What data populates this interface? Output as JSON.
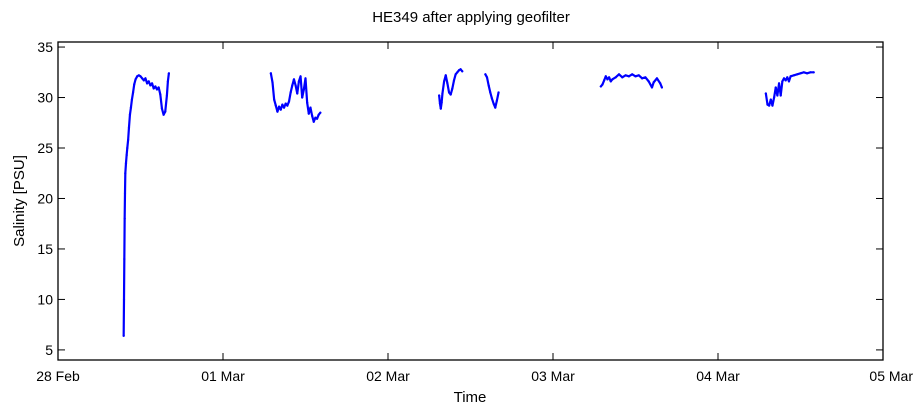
{
  "chart_data": {
    "type": "line",
    "title": "HE349 after applying geofilter",
    "xlabel": "Time",
    "ylabel": "Salinity [PSU]",
    "x_tick_labels": [
      "28 Feb",
      "01 Mar",
      "02 Mar",
      "03 Mar",
      "04 Mar",
      "05 Mar"
    ],
    "y_ticks": [
      5,
      10,
      15,
      20,
      25,
      30,
      35
    ],
    "xlim": [
      0,
      5
    ],
    "ylim": [
      4,
      35.5
    ],
    "grid": false,
    "line_color": "#0000ff",
    "series": [
      {
        "segments": [
          [
            [
              0.398,
              6.4
            ],
            [
              0.4,
              10.0
            ],
            [
              0.402,
              14.0
            ],
            [
              0.404,
              18.0
            ],
            [
              0.406,
              20.5
            ],
            [
              0.408,
              22.5
            ],
            [
              0.412,
              23.5
            ],
            [
              0.416,
              24.3
            ],
            [
              0.42,
              25.0
            ],
            [
              0.425,
              25.8
            ],
            [
              0.43,
              27.0
            ],
            [
              0.436,
              28.3
            ],
            [
              0.442,
              29.0
            ],
            [
              0.448,
              29.8
            ],
            [
              0.455,
              30.5
            ],
            [
              0.462,
              31.3
            ],
            [
              0.47,
              31.8
            ],
            [
              0.48,
              32.1
            ],
            [
              0.49,
              32.2
            ],
            [
              0.5,
              32.1
            ],
            [
              0.51,
              31.9
            ],
            [
              0.52,
              31.7
            ],
            [
              0.53,
              31.9
            ],
            [
              0.54,
              31.4
            ],
            [
              0.55,
              31.6
            ],
            [
              0.56,
              31.2
            ],
            [
              0.57,
              31.4
            ],
            [
              0.58,
              30.9
            ],
            [
              0.59,
              31.1
            ],
            [
              0.6,
              30.8
            ],
            [
              0.61,
              31.0
            ],
            [
              0.62,
              30.3
            ],
            [
              0.63,
              28.9
            ],
            [
              0.64,
              28.3
            ],
            [
              0.65,
              28.6
            ],
            [
              0.66,
              30.2
            ],
            [
              0.666,
              31.6
            ],
            [
              0.672,
              32.4
            ]
          ],
          [
            [
              1.29,
              32.4
            ],
            [
              1.3,
              31.5
            ],
            [
              1.31,
              29.8
            ],
            [
              1.32,
              29.2
            ],
            [
              1.33,
              28.6
            ],
            [
              1.34,
              29.1
            ],
            [
              1.35,
              28.8
            ],
            [
              1.36,
              29.3
            ],
            [
              1.37,
              29.0
            ],
            [
              1.38,
              29.4
            ],
            [
              1.39,
              29.2
            ],
            [
              1.4,
              29.6
            ],
            [
              1.41,
              30.5
            ],
            [
              1.42,
              31.2
            ],
            [
              1.43,
              31.8
            ],
            [
              1.44,
              31.2
            ],
            [
              1.45,
              30.4
            ],
            [
              1.46,
              31.6
            ],
            [
              1.47,
              32.1
            ],
            [
              1.48,
              30.0
            ],
            [
              1.49,
              30.8
            ],
            [
              1.5,
              31.9
            ],
            [
              1.51,
              29.5
            ],
            [
              1.52,
              28.4
            ],
            [
              1.53,
              29.0
            ],
            [
              1.54,
              28.2
            ],
            [
              1.55,
              27.6
            ],
            [
              1.56,
              28.0
            ],
            [
              1.57,
              27.9
            ],
            [
              1.58,
              28.3
            ],
            [
              1.59,
              28.5
            ]
          ],
          [
            [
              2.31,
              30.2
            ],
            [
              2.315,
              29.4
            ],
            [
              2.32,
              28.9
            ],
            [
              2.325,
              29.5
            ],
            [
              2.33,
              30.4
            ],
            [
              2.34,
              31.6
            ],
            [
              2.35,
              32.2
            ],
            [
              2.36,
              31.4
            ],
            [
              2.37,
              30.5
            ],
            [
              2.38,
              30.3
            ],
            [
              2.39,
              30.9
            ],
            [
              2.4,
              31.7
            ],
            [
              2.41,
              32.3
            ],
            [
              2.42,
              32.5
            ],
            [
              2.43,
              32.7
            ],
            [
              2.44,
              32.8
            ],
            [
              2.45,
              32.6
            ]
          ],
          [
            [
              2.59,
              32.3
            ],
            [
              2.6,
              32.0
            ],
            [
              2.61,
              31.2
            ],
            [
              2.62,
              30.5
            ],
            [
              2.63,
              29.9
            ],
            [
              2.64,
              29.4
            ],
            [
              2.65,
              29.0
            ],
            [
              2.66,
              29.7
            ],
            [
              2.67,
              30.5
            ]
          ],
          [
            [
              3.29,
              31.1
            ],
            [
              3.3,
              31.3
            ],
            [
              3.31,
              31.7
            ],
            [
              3.32,
              32.1
            ],
            [
              3.33,
              31.8
            ],
            [
              3.34,
              32.0
            ],
            [
              3.35,
              31.6
            ],
            [
              3.36,
              31.8
            ],
            [
              3.38,
              32.0
            ],
            [
              3.4,
              32.3
            ],
            [
              3.42,
              32.0
            ],
            [
              3.44,
              32.2
            ],
            [
              3.46,
              32.1
            ],
            [
              3.48,
              32.3
            ],
            [
              3.5,
              32.1
            ],
            [
              3.52,
              32.2
            ],
            [
              3.54,
              31.9
            ],
            [
              3.56,
              32.0
            ],
            [
              3.58,
              31.6
            ],
            [
              3.6,
              31.0
            ],
            [
              3.61,
              31.5
            ],
            [
              3.63,
              31.9
            ],
            [
              3.65,
              31.4
            ],
            [
              3.66,
              31.0
            ]
          ],
          [
            [
              4.29,
              30.4
            ],
            [
              4.3,
              29.3
            ],
            [
              4.31,
              29.2
            ],
            [
              4.32,
              29.8
            ],
            [
              4.33,
              29.2
            ],
            [
              4.34,
              30.0
            ],
            [
              4.35,
              31.0
            ],
            [
              4.36,
              30.2
            ],
            [
              4.37,
              31.4
            ],
            [
              4.38,
              30.2
            ],
            [
              4.39,
              31.6
            ],
            [
              4.4,
              31.9
            ],
            [
              4.41,
              31.7
            ],
            [
              4.42,
              32.0
            ],
            [
              4.43,
              31.6
            ],
            [
              4.44,
              32.1
            ],
            [
              4.46,
              32.2
            ],
            [
              4.48,
              32.3
            ],
            [
              4.5,
              32.4
            ],
            [
              4.52,
              32.5
            ],
            [
              4.54,
              32.4
            ],
            [
              4.56,
              32.5
            ],
            [
              4.58,
              32.5
            ]
          ]
        ]
      }
    ]
  }
}
